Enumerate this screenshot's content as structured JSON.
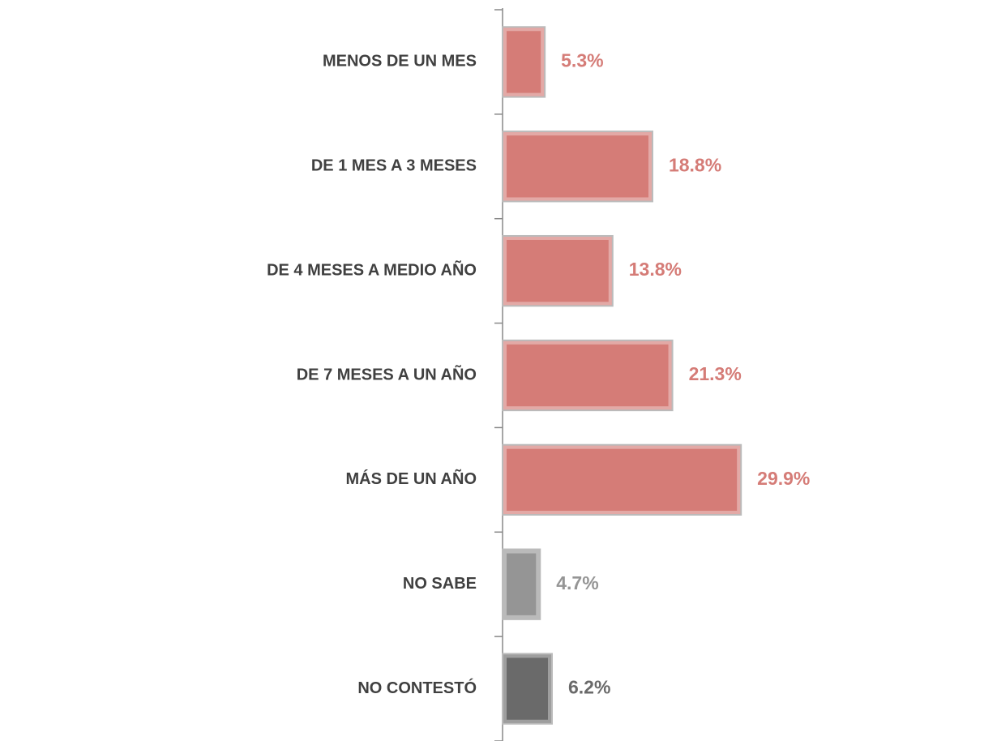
{
  "chart_data": {
    "type": "hbar",
    "categories": [
      "MENOS DE UN MES",
      "DE 1 MES A 3 MESES",
      "DE 4 MESES A MEDIO AÑO",
      "DE 7 MESES A UN AÑO",
      "MÁS DE UN AÑO",
      "NO SABE",
      "NO CONTESTÓ"
    ],
    "values": [
      5.3,
      18.8,
      13.8,
      21.3,
      29.9,
      4.7,
      6.2
    ],
    "value_labels": [
      "5.3%",
      "18.8%",
      "13.8%",
      "21.3%",
      "29.9%",
      "4.7%",
      "6.2%"
    ],
    "colors": [
      "#d57c77",
      "#d57c77",
      "#d57c77",
      "#d57c77",
      "#d57c77",
      "#959595",
      "#6a6a6a"
    ],
    "xlim": [
      0,
      62
    ]
  }
}
